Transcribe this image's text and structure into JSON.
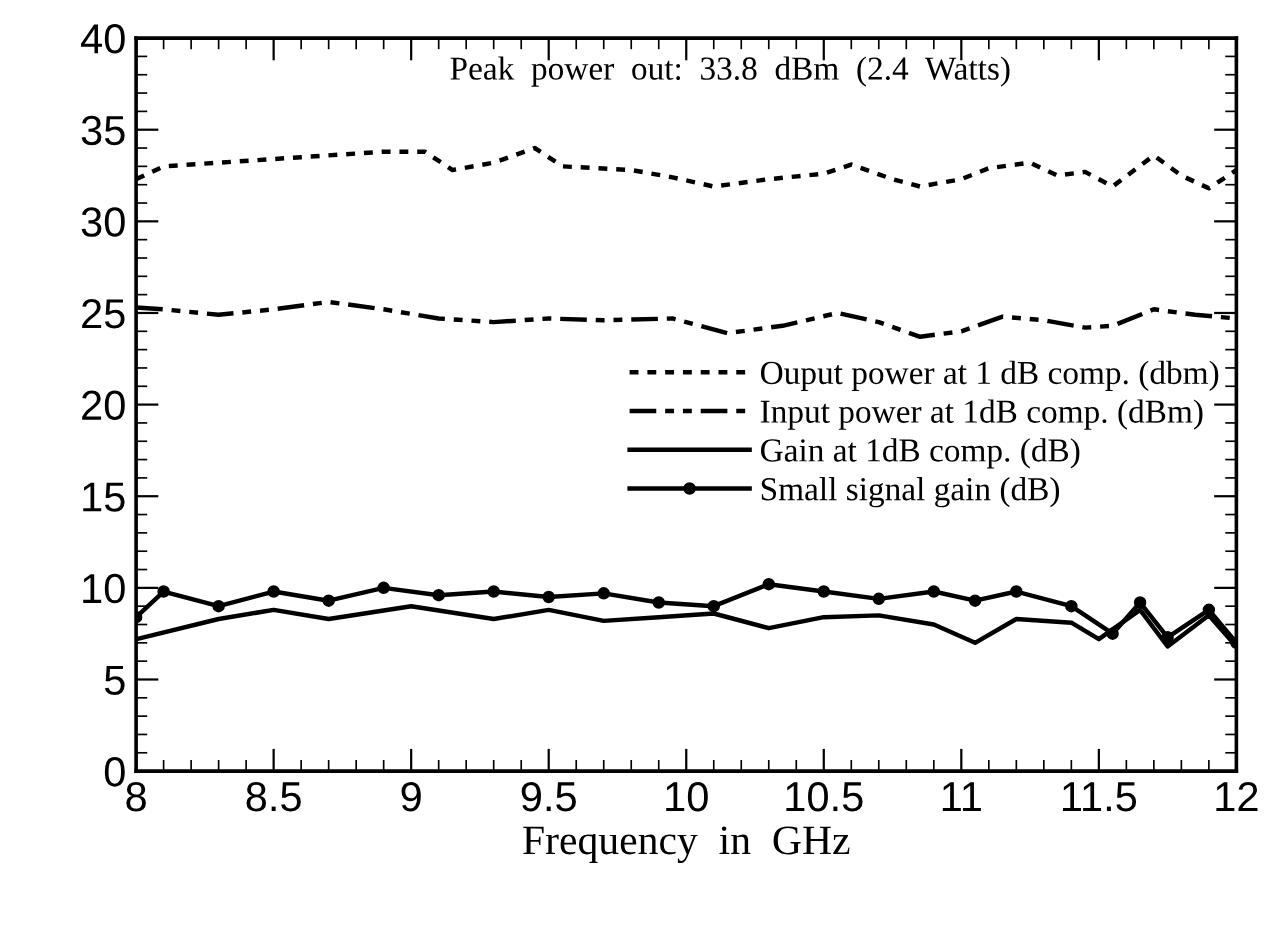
{
  "chart_data": {
    "type": "line",
    "xlabel": "Frequency  in  GHz",
    "annotations": [
      "Peak  power  out:  33.8  dBm  (2.4  Watts)"
    ],
    "xlim": [
      8,
      12
    ],
    "xticks": [
      8,
      8.5,
      9,
      9.5,
      10,
      10.5,
      11,
      11.5,
      12
    ],
    "ylim": [
      0,
      40
    ],
    "yticks": [
      0,
      5,
      10,
      15,
      20,
      25,
      30,
      35,
      40
    ],
    "grid": false,
    "legend": "right",
    "series": [
      {
        "name": "Ouput power at 1 dB comp. (dbm)",
        "color": "#000000",
        "line_style": "dotted",
        "marker": "none",
        "x": [
          8,
          8.1,
          8.3,
          8.6,
          8.9,
          9.05,
          9.15,
          9.3,
          9.45,
          9.55,
          9.8,
          9.95,
          10.1,
          10.3,
          10.5,
          10.6,
          10.75,
          10.85,
          11.0,
          11.1,
          11.25,
          11.35,
          11.45,
          11.55,
          11.7,
          11.8,
          11.9,
          12
        ],
        "values": [
          32.3,
          33,
          33.2,
          33.5,
          33.8,
          33.8,
          32.8,
          33.2,
          34,
          33,
          32.8,
          32.4,
          31.9,
          32.3,
          32.6,
          33.1,
          32.3,
          31.9,
          32.3,
          32.9,
          33.2,
          32.5,
          32.7,
          31.9,
          33.6,
          32.5,
          31.8,
          32.8
        ]
      },
      {
        "name": "Input power at 1dB comp. (dBm)",
        "color": "#000000",
        "line_style": "dashdot",
        "marker": "none",
        "x": [
          8,
          8.1,
          8.3,
          8.5,
          8.7,
          8.9,
          9.1,
          9.3,
          9.5,
          9.7,
          9.95,
          10.15,
          10.35,
          10.55,
          10.7,
          10.85,
          11.0,
          11.15,
          11.3,
          11.45,
          11.55,
          11.7,
          11.85,
          12
        ],
        "values": [
          25.3,
          25.2,
          24.9,
          25.2,
          25.6,
          25.2,
          24.7,
          24.5,
          24.7,
          24.6,
          24.7,
          23.9,
          24.3,
          25,
          24.5,
          23.7,
          24,
          24.8,
          24.6,
          24.2,
          24.3,
          25.2,
          24.9,
          24.7
        ]
      },
      {
        "name": "Gain at 1dB comp. (dB)",
        "color": "#000000",
        "line_style": "solid",
        "marker": "none",
        "x": [
          8,
          8.3,
          8.5,
          8.7,
          9.0,
          9.3,
          9.5,
          9.7,
          9.9,
          10.1,
          10.3,
          10.5,
          10.7,
          10.9,
          11.05,
          11.2,
          11.4,
          11.5,
          11.65,
          11.75,
          11.9,
          12
        ],
        "values": [
          7.2,
          8.3,
          8.8,
          8.3,
          9.0,
          8.3,
          8.8,
          8.2,
          8.4,
          8.6,
          7.8,
          8.4,
          8.5,
          8.0,
          7.0,
          8.3,
          8.1,
          7.2,
          8.8,
          6.8,
          8.5,
          6.8
        ]
      },
      {
        "name": "Small signal gain (dB)",
        "color": "#000000",
        "line_style": "solid",
        "marker": "circle",
        "x": [
          8,
          8.1,
          8.3,
          8.5,
          8.7,
          8.9,
          9.1,
          9.3,
          9.5,
          9.7,
          9.9,
          10.1,
          10.3,
          10.5,
          10.7,
          10.9,
          11.05,
          11.2,
          11.4,
          11.55,
          11.65,
          11.75,
          11.9,
          12
        ],
        "values": [
          8.4,
          9.8,
          9.0,
          9.8,
          9.3,
          10.0,
          9.6,
          9.8,
          9.5,
          9.7,
          9.2,
          9.0,
          10.2,
          9.8,
          9.4,
          9.8,
          9.3,
          9.8,
          9.0,
          7.5,
          9.2,
          7.3,
          8.8,
          7.0
        ]
      }
    ]
  }
}
